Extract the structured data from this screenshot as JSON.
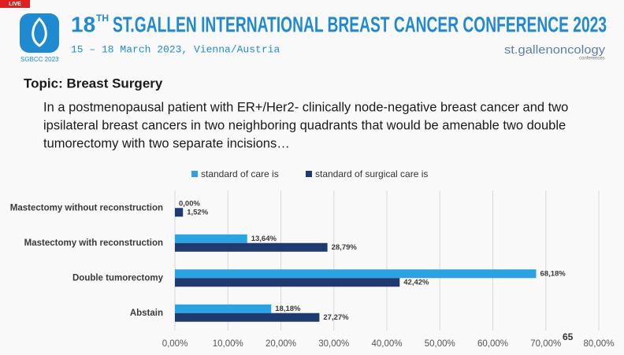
{
  "badge": "LIVE",
  "header": {
    "title_number": "18",
    "title_suffix": "TH",
    "title_rest": "ST.GALLEN INTERNATIONAL BREAST CANCER CONFERENCE 2023",
    "subtitle": "15 – 18 March 2023, Vienna/Austria",
    "logo_caption": "SGBCC 2023",
    "brand": "st.gallenoncology",
    "brand_sub": "conferences"
  },
  "topic": "Topic: Breast Surgery",
  "question_lines": [
    "In a postmenopausal patient with ER+/Her2- clinically node-negative breast cancer and two",
    "ipsilateral breast cancers in two neighboring quadrants that would be amenable two double",
    "tumorectomy with two separate incisions…"
  ],
  "page_number": "65",
  "chart_data": {
    "type": "hbar",
    "categories": [
      "Mastectomy without reconstruction",
      "Mastectomy with reconstruction",
      "Double tumorectomy",
      "Abstain"
    ],
    "series": [
      {
        "name": "standard of care is",
        "color": "#2ba3e3",
        "values": [
          0,
          13.64,
          68.18,
          18.18
        ],
        "value_labels": [
          "0,00%",
          "13,64%",
          "68,18%",
          "18,18%"
        ]
      },
      {
        "name": "standard of surgical care is",
        "color": "#1f3a6e",
        "values": [
          1.52,
          28.79,
          42.42,
          27.27
        ],
        "value_labels": [
          "1,52%",
          "28,79%",
          "42,42%",
          "27,27%"
        ]
      }
    ],
    "xlim": [
      0,
      80
    ],
    "xticks": [
      {
        "value": 0,
        "label": "0,00%"
      },
      {
        "value": 10,
        "label": "10,00%"
      },
      {
        "value": 20,
        "label": "20,00%"
      },
      {
        "value": 30,
        "label": "30,00%"
      },
      {
        "value": 40,
        "label": "40,00%"
      },
      {
        "value": 50,
        "label": "50,00%"
      },
      {
        "value": 60,
        "label": "60,00%"
      },
      {
        "value": 70,
        "label": "70,00%"
      },
      {
        "value": 80,
        "label": "80,00%"
      }
    ],
    "grid": true,
    "legend": "top"
  }
}
